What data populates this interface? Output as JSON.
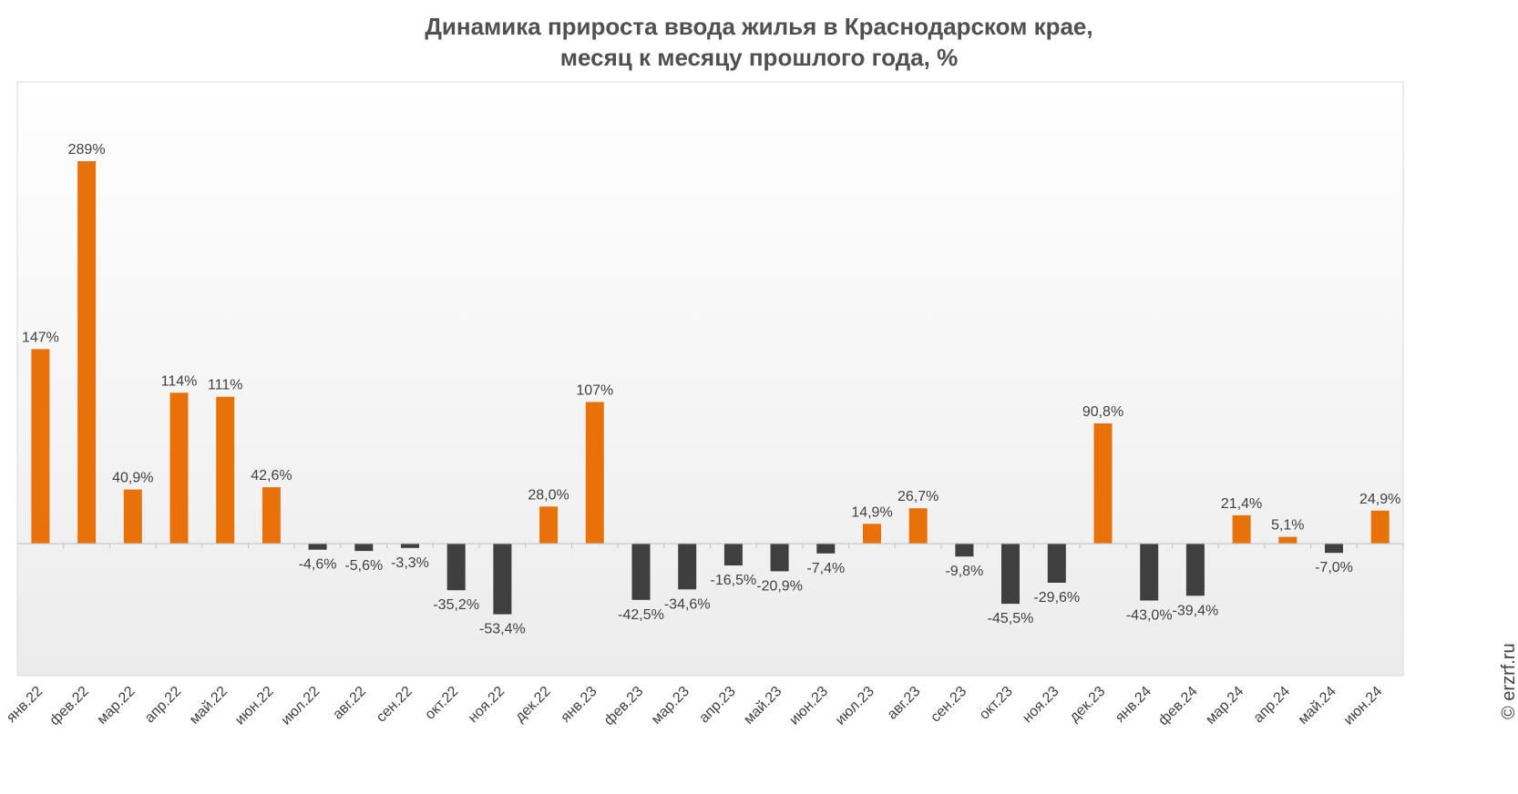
{
  "chart_data": {
    "type": "bar",
    "title": "Динамика прироста ввода жилья в Краснодарском крае,",
    "subtitle": "месяц к месяцу прошлого года, %",
    "categories": [
      "янв.22",
      "фев.22",
      "мар.22",
      "апр.22",
      "май.22",
      "июн.22",
      "июл.22",
      "авг.22",
      "сен.22",
      "окт.22",
      "ноя.22",
      "дек.22",
      "янв.23",
      "фев.23",
      "мар.23",
      "апр.23",
      "май.23",
      "июн.23",
      "июл.23",
      "авг.23",
      "сен.23",
      "окт.23",
      "ноя.23",
      "дек.23",
      "янв.24",
      "фев.24",
      "мар.24",
      "апр.24",
      "май.24",
      "июн.24"
    ],
    "values": [
      147,
      289,
      40.9,
      114,
      111,
      42.6,
      -4.6,
      -5.6,
      -3.3,
      -35.2,
      -53.4,
      28.0,
      107,
      -42.5,
      -34.6,
      -16.5,
      -20.9,
      -7.4,
      14.9,
      26.7,
      -9.8,
      -45.5,
      -29.6,
      90.8,
      -43.0,
      -39.4,
      21.4,
      5.1,
      -7.0,
      24.9
    ],
    "labels": [
      "147%",
      "289%",
      "40,9%",
      "114%",
      "111%",
      "42,6%",
      "-4,6%",
      "-5,6%",
      "-3,3%",
      "-35,2%",
      "-53,4%",
      "28,0%",
      "107%",
      "-42,5%",
      "-34,6%",
      "-16,5%",
      "-20,9%",
      "-7,4%",
      "14,9%",
      "26,7%",
      "-9,8%",
      "-45,5%",
      "-29,6%",
      "90,8%",
      "-43,0%",
      "-39,4%",
      "21,4%",
      "5,1%",
      "-7,0%",
      "24,9%"
    ],
    "ylim": [
      -100,
      350
    ],
    "xlabel": "",
    "ylabel": "",
    "grid": false,
    "colors": {
      "positive": "#E8710A",
      "negative": "#3F3F3F",
      "axis": "#BFBFBF",
      "label": "#404040",
      "plot_border": "#D9D9D9"
    }
  },
  "watermark": "© erzrf.ru"
}
